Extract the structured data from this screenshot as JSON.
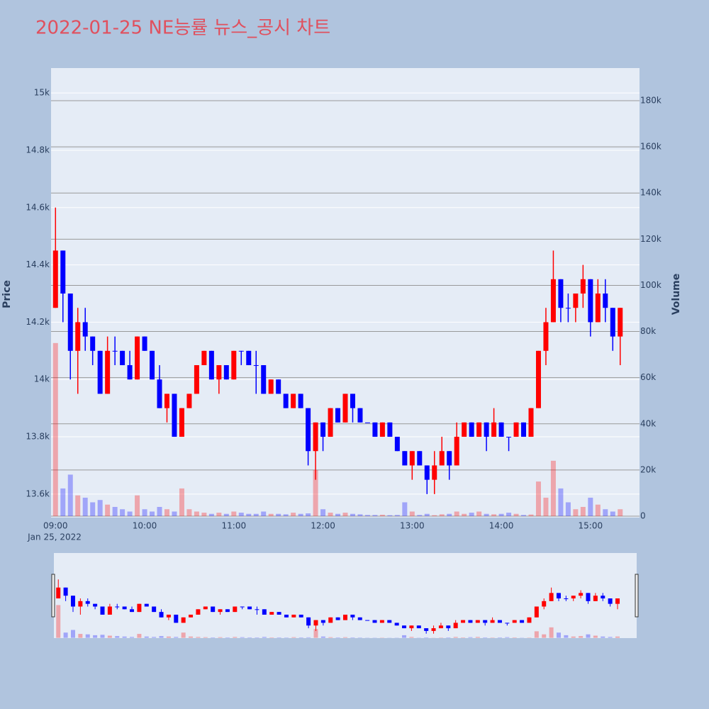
{
  "chart_data": {
    "type": "candlestick",
    "title": "2022-01-25 NE능률 뉴스_공시 차트",
    "yaxis_label": "Price",
    "y2axis_label": "Volume",
    "x_date_label": "Jan 25, 2022",
    "increasing_color": "#ff0000",
    "decreasing_color": "#0000ff",
    "rangeslider": true,
    "x": [
      "09:00",
      "09:05",
      "09:10",
      "09:15",
      "09:20",
      "09:25",
      "09:30",
      "09:35",
      "09:40",
      "09:45",
      "09:50",
      "09:55",
      "10:00",
      "10:05",
      "10:10",
      "10:15",
      "10:20",
      "10:25",
      "10:30",
      "10:35",
      "10:40",
      "10:45",
      "10:50",
      "10:55",
      "11:00",
      "11:05",
      "11:10",
      "11:15",
      "11:20",
      "11:25",
      "11:30",
      "11:35",
      "11:40",
      "11:45",
      "11:50",
      "11:55",
      "12:00",
      "12:05",
      "12:10",
      "12:15",
      "12:20",
      "12:25",
      "12:30",
      "12:35",
      "12:40",
      "12:45",
      "12:50",
      "12:55",
      "13:00",
      "13:05",
      "13:10",
      "13:15",
      "13:20",
      "13:25",
      "13:30",
      "13:35",
      "13:40",
      "13:45",
      "13:50",
      "13:55",
      "14:00",
      "14:05",
      "14:10",
      "14:15",
      "14:20",
      "14:25",
      "14:30",
      "14:35",
      "14:40",
      "14:45",
      "14:50",
      "14:55",
      "15:00",
      "15:05",
      "15:10",
      "15:15",
      "15:20"
    ],
    "open": [
      14250,
      14450,
      14300,
      14100,
      14200,
      14150,
      14100,
      13950,
      14100,
      14100,
      14050,
      14000,
      14150,
      14100,
      14000,
      13900,
      13950,
      13800,
      13900,
      13950,
      14050,
      14100,
      14000,
      14050,
      14000,
      14100,
      14100,
      14050,
      14050,
      13950,
      14000,
      13950,
      13900,
      13950,
      13900,
      13750,
      13850,
      13800,
      13900,
      13850,
      13950,
      13900,
      13850,
      13850,
      13800,
      13850,
      13800,
      13750,
      13700,
      13750,
      13700,
      13650,
      13700,
      13750,
      13700,
      13800,
      13850,
      13800,
      13850,
      13800,
      13850,
      13800,
      13800,
      13850,
      13800,
      13900,
      14100,
      14200,
      14350,
      14250,
      14250,
      14300,
      14350,
      14200,
      14300,
      14250,
      14150
    ],
    "high": [
      14600,
      14450,
      14300,
      14250,
      14250,
      14150,
      14100,
      14150,
      14150,
      14100,
      14100,
      14150,
      14150,
      14100,
      14050,
      13950,
      13950,
      13900,
      13950,
      14050,
      14100,
      14100,
      14050,
      14050,
      14100,
      14100,
      14100,
      14100,
      14050,
      14000,
      14000,
      13950,
      13950,
      13950,
      13900,
      13850,
      13850,
      13900,
      13900,
      13950,
      13950,
      13900,
      13850,
      13850,
      13850,
      13850,
      13800,
      13750,
      13750,
      13750,
      13700,
      13750,
      13800,
      13750,
      13850,
      13850,
      13850,
      13850,
      13850,
      13900,
      13850,
      13800,
      13850,
      13850,
      13900,
      14100,
      14250,
      14450,
      14350,
      14300,
      14300,
      14400,
      14350,
      14350,
      14350,
      14250,
      14250
    ],
    "low": [
      14250,
      14200,
      14000,
      13950,
      14100,
      14050,
      13950,
      13950,
      14050,
      14050,
      14000,
      14000,
      14100,
      14000,
      13900,
      13850,
      13800,
      13800,
      13900,
      13950,
      14050,
      14000,
      13950,
      14000,
      14000,
      14050,
      14050,
      13950,
      13950,
      13950,
      13950,
      13900,
      13900,
      13900,
      13700,
      13650,
      13750,
      13800,
      13850,
      13850,
      13850,
      13850,
      13850,
      13800,
      13800,
      13800,
      13750,
      13700,
      13650,
      13700,
      13600,
      13600,
      13700,
      13650,
      13700,
      13800,
      13800,
      13800,
      13750,
      13800,
      13800,
      13750,
      13800,
      13800,
      13800,
      13900,
      14050,
      14200,
      14200,
      14200,
      14200,
      14250,
      14150,
      14200,
      14200,
      14100,
      14050
    ],
    "close": [
      14450,
      14300,
      14100,
      14200,
      14150,
      14100,
      13950,
      14100,
      14100,
      14050,
      14000,
      14150,
      14100,
      14000,
      13900,
      13950,
      13800,
      13900,
      13950,
      14050,
      14100,
      14000,
      14050,
      14000,
      14100,
      14100,
      14050,
      14050,
      13950,
      14000,
      13950,
      13900,
      13950,
      13900,
      13750,
      13850,
      13800,
      13900,
      13850,
      13950,
      13900,
      13850,
      13850,
      13800,
      13850,
      13800,
      13750,
      13700,
      13750,
      13700,
      13650,
      13700,
      13750,
      13700,
      13800,
      13850,
      13800,
      13850,
      13800,
      13850,
      13800,
      13800,
      13850,
      13800,
      13900,
      14100,
      14200,
      14350,
      14250,
      14250,
      14300,
      14350,
      14200,
      14300,
      14250,
      14150,
      14250
    ],
    "volume": [
      75000,
      12000,
      18000,
      9000,
      8000,
      6000,
      7000,
      5000,
      4000,
      3000,
      2000,
      9000,
      3000,
      2000,
      4000,
      3000,
      2000,
      12000,
      3000,
      2000,
      1500,
      1000,
      1500,
      1000,
      2000,
      1500,
      1000,
      1000,
      2000,
      1000,
      1000,
      800,
      1500,
      1000,
      1200,
      20000,
      3000,
      1500,
      1000,
      1500,
      1000,
      800,
      500,
      500,
      600,
      400,
      500,
      6000,
      2000,
      500,
      1000,
      400,
      800,
      1000,
      2000,
      1000,
      1500,
      2000,
      1000,
      800,
      1000,
      1500,
      1000,
      500,
      700,
      15000,
      8000,
      24000,
      12000,
      6000,
      3000,
      4000,
      8000,
      5000,
      3000,
      2000,
      3000
    ],
    "xlim": [
      "08:57",
      "15:33"
    ],
    "xticks": [
      "09:00",
      "10:00",
      "11:00",
      "12:00",
      "13:00",
      "14:00",
      "15:00"
    ],
    "ylim": [
      13518,
      15087
    ],
    "yticks": [
      {
        "value": 13600,
        "label": "13.6k"
      },
      {
        "value": 13800,
        "label": "13.8k"
      },
      {
        "value": 14000,
        "label": "14k"
      },
      {
        "value": 14200,
        "label": "14.2k"
      },
      {
        "value": 14400,
        "label": "14.4k"
      },
      {
        "value": 14600,
        "label": "14.6k"
      },
      {
        "value": 14800,
        "label": "14.8k"
      },
      {
        "value": 15000,
        "label": "15k"
      }
    ],
    "y2lim": [
      -614,
      194130
    ],
    "y2ticks": [
      0,
      {
        "value": 20000,
        "label": "20k"
      },
      {
        "value": 40000,
        "label": "40k"
      },
      {
        "value": 60000,
        "label": "60k"
      },
      {
        "value": 80000,
        "label": "80k"
      },
      {
        "value": 100000,
        "label": "100k"
      },
      {
        "value": 120000,
        "label": "120k"
      },
      {
        "value": 140000,
        "label": "140k"
      },
      {
        "value": 160000,
        "label": "160k"
      },
      {
        "value": 180000,
        "label": "180k"
      }
    ]
  }
}
